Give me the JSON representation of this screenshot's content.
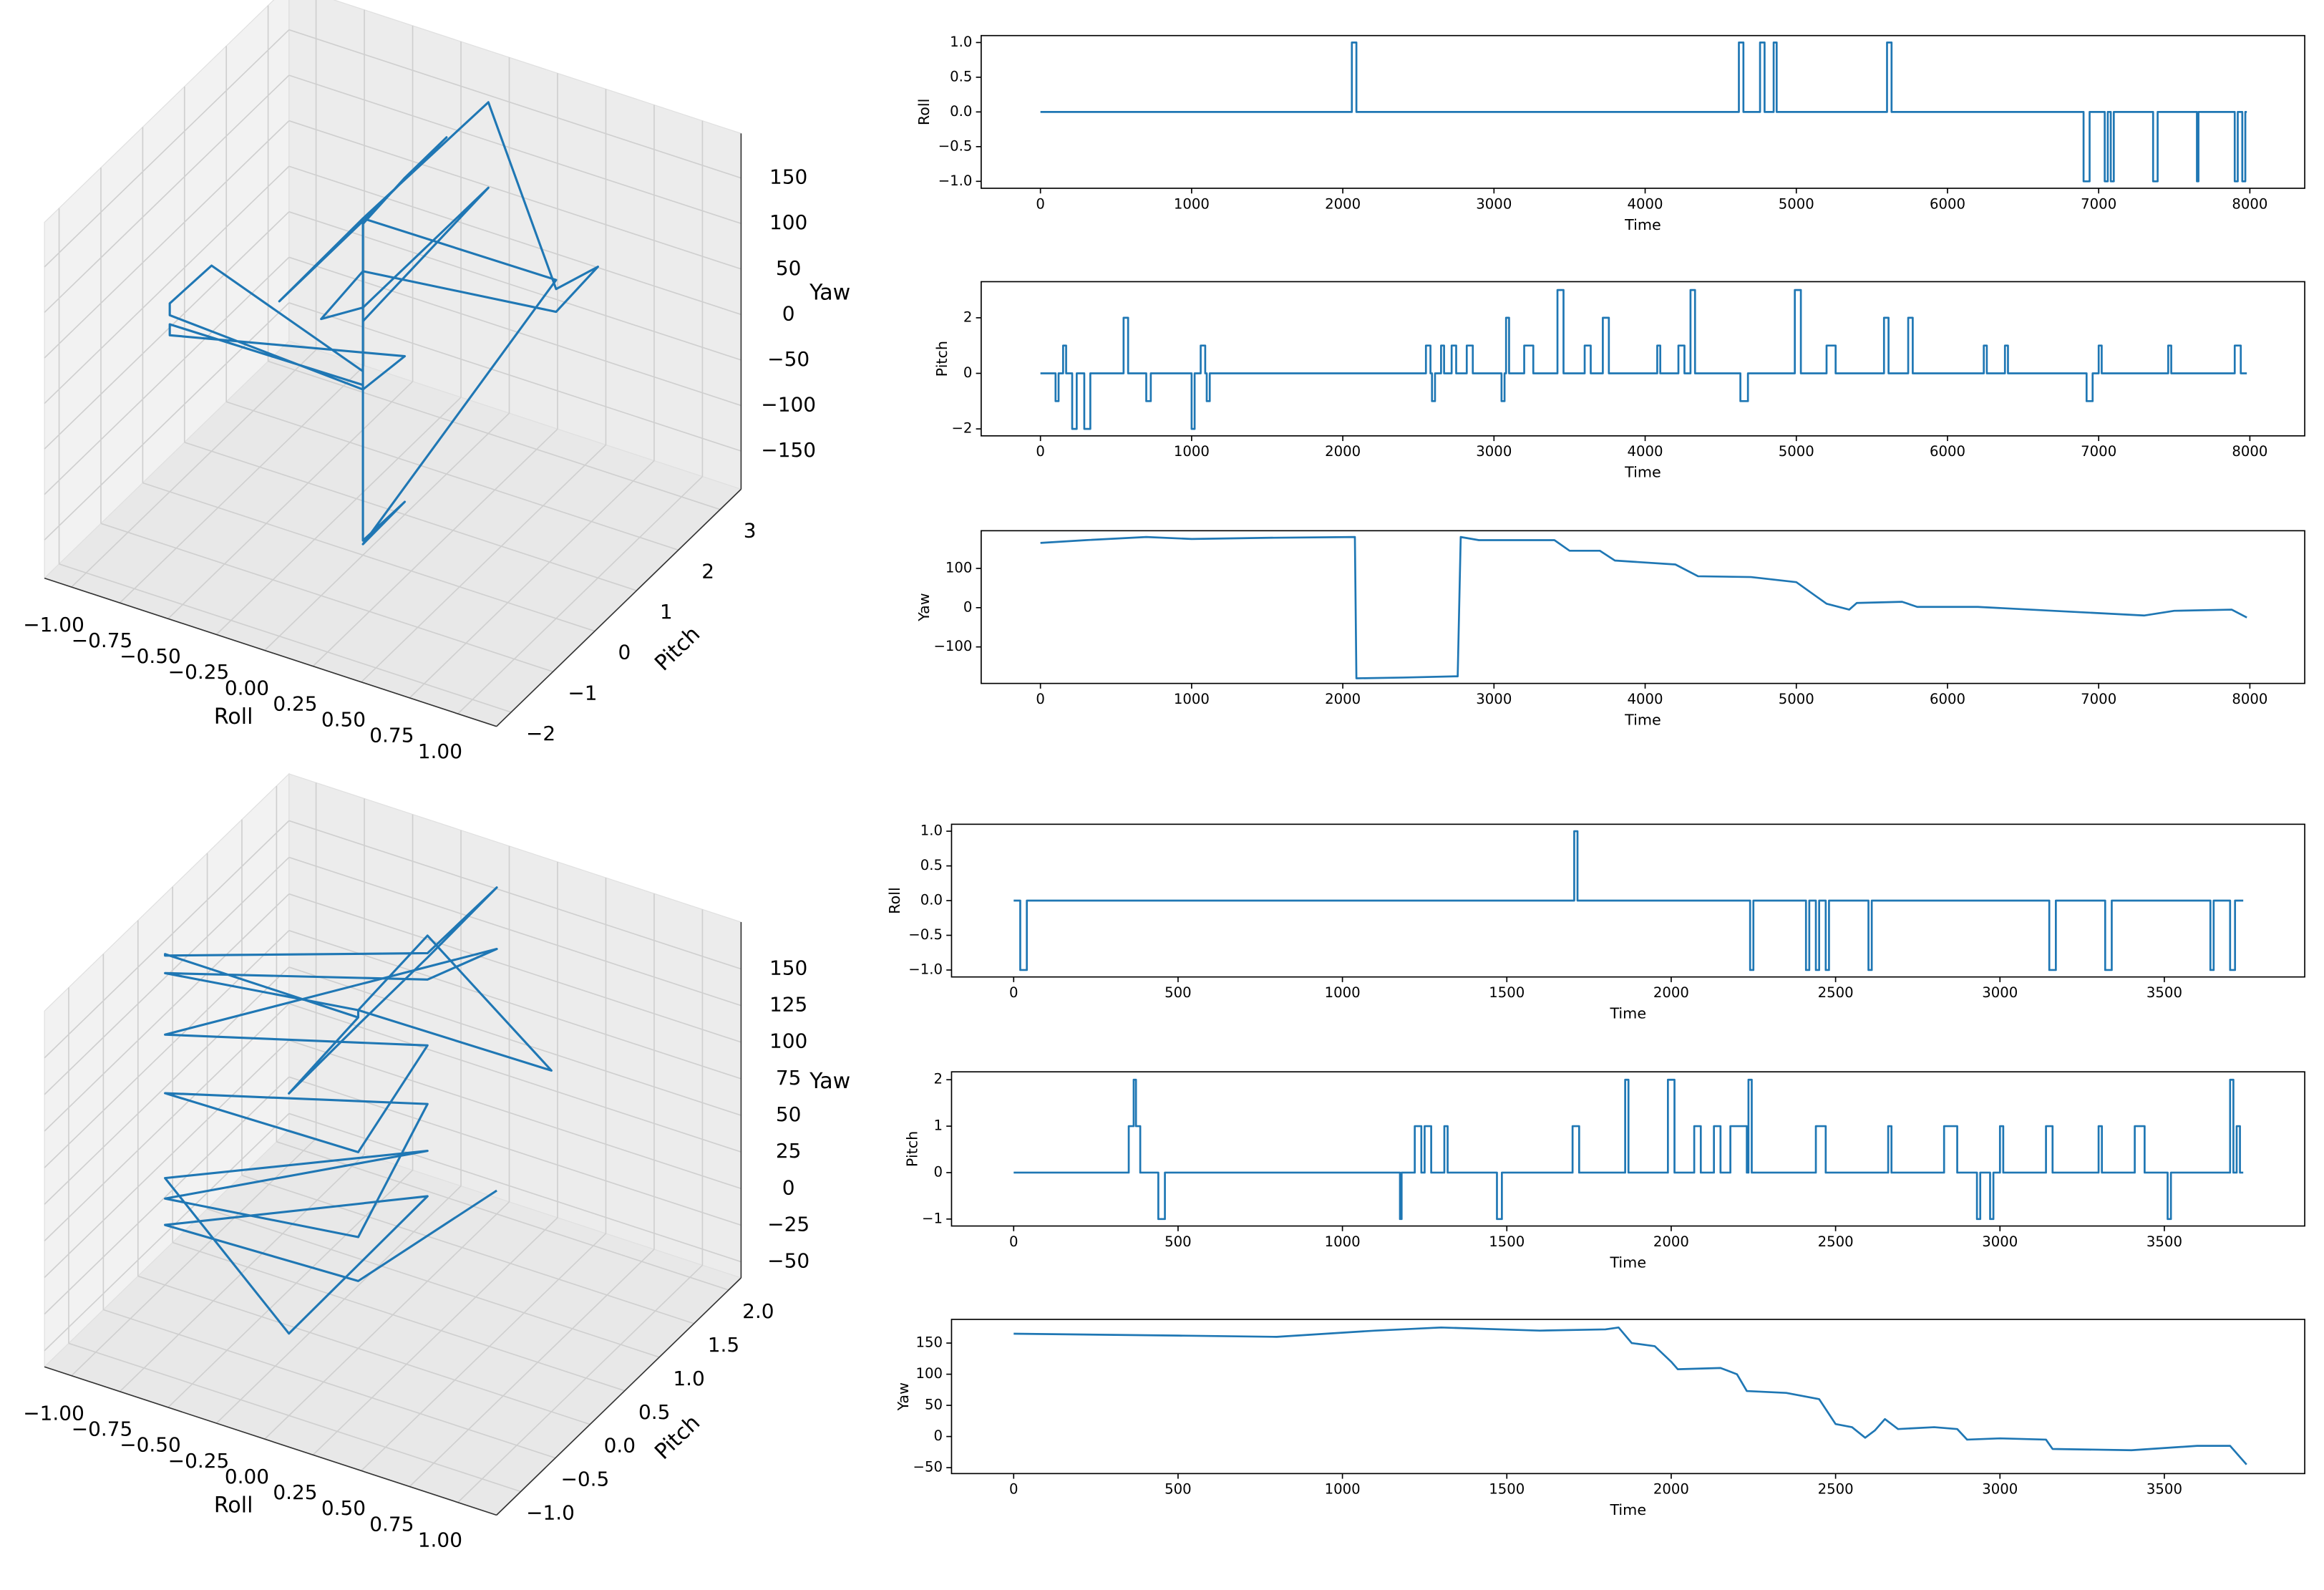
{
  "chart_data": [
    {
      "type": "line3d",
      "color": "#1f77b4",
      "grid": true,
      "xlabel": "Roll",
      "ylabel": "Pitch",
      "zlabel": "Yaw",
      "xlim": [
        -1.14,
        1.2
      ],
      "ylim": [
        -2.35,
        3.5
      ],
      "zlim": [
        -192,
        199
      ],
      "xticks": [
        {
          "value": -1,
          "label": "−1.00"
        },
        {
          "value": -0.75,
          "label": "−0.75"
        },
        {
          "value": -0.5,
          "label": "−0.50"
        },
        {
          "value": -0.25,
          "label": "−0.25"
        },
        {
          "value": 0,
          "label": "0.00"
        },
        {
          "value": 0.25,
          "label": "0.25"
        },
        {
          "value": 0.5,
          "label": "0.50"
        },
        {
          "value": 0.75,
          "label": "0.75"
        },
        {
          "value": 1,
          "label": "1.00"
        }
      ],
      "yticks": [
        {
          "value": -2,
          "label": "−2"
        },
        {
          "value": -1,
          "label": "−1"
        },
        0,
        1,
        2,
        3
      ],
      "zticks": [
        {
          "value": -150,
          "label": "−150"
        },
        {
          "value": -100,
          "label": "−100"
        },
        {
          "value": -50,
          "label": "−50"
        },
        0,
        50,
        100,
        150
      ],
      "x": [
        0,
        0,
        0,
        0,
        0,
        0,
        0,
        1,
        1,
        0,
        0,
        0,
        0,
        0,
        1,
        1,
        1,
        0,
        0,
        0,
        0,
        0,
        0,
        -1,
        -1,
        -1,
        0,
        0,
        -1,
        -1,
        0,
        0
      ],
      "y": [
        0,
        0,
        1,
        2,
        0,
        -2,
        0,
        0,
        0,
        0,
        1,
        0,
        0,
        3,
        0,
        1,
        0,
        0,
        -1,
        0,
        3,
        0,
        0,
        1,
        0,
        0,
        0,
        1,
        0,
        0,
        0,
        0
      ],
      "z": [
        165,
        172,
        178,
        178,
        175,
        176,
        178,
        180,
        180,
        -180,
        -178,
        -176,
        178,
        172,
        170,
        150,
        145,
        120,
        112,
        80,
        78,
        65,
        10,
        12,
        15,
        2,
        -10,
        -18,
        -20,
        -8,
        -5,
        -25
      ]
    },
    {
      "type": "line",
      "color": "#1f77b4",
      "xlabel": "Time",
      "ylabel": "Roll",
      "xlim": [
        -392,
        8363
      ],
      "ylim": [
        -1.1,
        1.1
      ],
      "xticks": [
        0,
        1000,
        2000,
        3000,
        4000,
        5000,
        6000,
        7000,
        8000
      ],
      "yticks": [
        {
          "value": -1,
          "label": "−1.0"
        },
        {
          "value": -0.5,
          "label": "−0.5"
        },
        {
          "value": 0,
          "label": "0.0"
        },
        0.5,
        {
          "value": 1,
          "label": "1.0"
        }
      ],
      "x": [
        0,
        2060,
        2060,
        2090,
        2090,
        4620,
        4620,
        4650,
        4650,
        4760,
        4760,
        4790,
        4790,
        4850,
        4850,
        4870,
        4870,
        5600,
        5600,
        5630,
        5630,
        6900,
        6900,
        6940,
        6940,
        7040,
        7040,
        7060,
        7060,
        7080,
        7080,
        7100,
        7100,
        7360,
        7360,
        7390,
        7390,
        7650,
        7650,
        7660,
        7660,
        7900,
        7900,
        7920,
        7920,
        7950,
        7950,
        7970,
        7970,
        7980
      ],
      "values": [
        0,
        0,
        1,
        1,
        0,
        0,
        1,
        1,
        0,
        0,
        1,
        1,
        0,
        0,
        1,
        1,
        0,
        0,
        1,
        1,
        0,
        0,
        -1,
        -1,
        0,
        0,
        -1,
        -1,
        0,
        0,
        -1,
        -1,
        0,
        0,
        -1,
        -1,
        0,
        0,
        -1,
        -1,
        0,
        0,
        -1,
        -1,
        0,
        0,
        -1,
        -1,
        0,
        0
      ]
    },
    {
      "type": "line",
      "color": "#1f77b4",
      "xlabel": "Time",
      "ylabel": "Pitch",
      "xlim": [
        -392,
        8363
      ],
      "ylim": [
        -2.25,
        3.3
      ],
      "xticks": [
        0,
        1000,
        2000,
        3000,
        4000,
        5000,
        6000,
        7000,
        8000
      ],
      "yticks": [
        {
          "value": -2,
          "label": "−2"
        },
        0,
        2
      ],
      "x": [
        0,
        100,
        100,
        120,
        120,
        150,
        150,
        170,
        170,
        210,
        210,
        240,
        240,
        290,
        290,
        330,
        330,
        550,
        550,
        580,
        580,
        700,
        700,
        730,
        730,
        1000,
        1000,
        1020,
        1020,
        1060,
        1060,
        1090,
        1090,
        1100,
        1100,
        1120,
        1120,
        2550,
        2550,
        2580,
        2580,
        2590,
        2590,
        2610,
        2610,
        2650,
        2650,
        2670,
        2670,
        2720,
        2720,
        2750,
        2750,
        2820,
        2820,
        2860,
        2860,
        3050,
        3050,
        3070,
        3070,
        3080,
        3080,
        3100,
        3100,
        3200,
        3200,
        3260,
        3260,
        3420,
        3420,
        3460,
        3460,
        3600,
        3600,
        3640,
        3640,
        3720,
        3720,
        3760,
        3760,
        4080,
        4080,
        4100,
        4100,
        4220,
        4220,
        4260,
        4260,
        4300,
        4300,
        4330,
        4330,
        4630,
        4630,
        4680,
        4680,
        4990,
        4990,
        5030,
        5030,
        5200,
        5200,
        5260,
        5260,
        5580,
        5580,
        5610,
        5610,
        5740,
        5740,
        5770,
        5770,
        6240,
        6240,
        6260,
        6260,
        6380,
        6380,
        6400,
        6400,
        6920,
        6920,
        6960,
        6960,
        7000,
        7000,
        7020,
        7020,
        7460,
        7460,
        7480,
        7480,
        7900,
        7900,
        7940,
        7940,
        7980
      ],
      "values": [
        0,
        0,
        -1,
        -1,
        0,
        0,
        1,
        1,
        0,
        0,
        -2,
        -2,
        0,
        0,
        -2,
        -2,
        0,
        0,
        2,
        2,
        0,
        0,
        -1,
        -1,
        0,
        0,
        -2,
        -2,
        0,
        0,
        1,
        1,
        0,
        0,
        -1,
        -1,
        0,
        0,
        1,
        1,
        0,
        0,
        -1,
        -1,
        0,
        0,
        1,
        1,
        0,
        0,
        1,
        1,
        0,
        0,
        1,
        1,
        0,
        0,
        -1,
        -1,
        0,
        0,
        2,
        2,
        0,
        0,
        1,
        1,
        0,
        0,
        3,
        3,
        0,
        0,
        1,
        1,
        0,
        0,
        2,
        2,
        0,
        0,
        1,
        1,
        0,
        0,
        1,
        1,
        0,
        0,
        3,
        3,
        0,
        0,
        -1,
        -1,
        0,
        0,
        3,
        3,
        0,
        0,
        1,
        1,
        0,
        0,
        2,
        2,
        0,
        0,
        2,
        2,
        0,
        0,
        1,
        1,
        0,
        0,
        1,
        1,
        0,
        0,
        -1,
        -1,
        0,
        0,
        1,
        1,
        0,
        0,
        1,
        1,
        0,
        0,
        1,
        1,
        0,
        0
      ]
    },
    {
      "type": "line",
      "color": "#1f77b4",
      "xlabel": "Time",
      "ylabel": "Yaw",
      "xlim": [
        -392,
        8363
      ],
      "ylim": [
        -193,
        196
      ],
      "xticks": [
        0,
        1000,
        2000,
        3000,
        4000,
        5000,
        6000,
        7000,
        8000
      ],
      "yticks": [
        {
          "value": -100,
          "label": "−100"
        },
        0,
        100
      ],
      "x": [
        0,
        300,
        700,
        1000,
        1500,
        2080,
        2090,
        2400,
        2740,
        2760,
        2780,
        2900,
        3400,
        3500,
        3700,
        3800,
        4200,
        4350,
        4700,
        5000,
        5200,
        5350,
        5400,
        5700,
        5800,
        6200,
        6800,
        7300,
        7500,
        7880,
        7980
      ],
      "values": [
        165,
        172,
        180,
        175,
        178,
        180,
        -180,
        -178,
        -175,
        -175,
        180,
        172,
        172,
        145,
        145,
        120,
        110,
        80,
        78,
        65,
        10,
        -5,
        12,
        15,
        2,
        2,
        -10,
        -20,
        -8,
        -5,
        -25
      ]
    },
    {
      "type": "line3d",
      "color": "#1f77b4",
      "grid": true,
      "xlabel": "Roll",
      "ylabel": "Pitch",
      "zlabel": "Yaw",
      "xlim": [
        -1.14,
        1.2
      ],
      "ylim": [
        -1.35,
        2.18
      ],
      "zlim": [
        -61,
        182
      ],
      "xticks": [
        {
          "value": -1,
          "label": "−1.00"
        },
        {
          "value": -0.75,
          "label": "−0.75"
        },
        {
          "value": -0.5,
          "label": "−0.50"
        },
        {
          "value": -0.25,
          "label": "−0.25"
        },
        {
          "value": 0,
          "label": "0.00"
        },
        {
          "value": 0.25,
          "label": "0.25"
        },
        {
          "value": 0.5,
          "label": "0.50"
        },
        {
          "value": 0.75,
          "label": "0.75"
        },
        {
          "value": 1,
          "label": "1.00"
        }
      ],
      "yticks": [
        {
          "value": -1,
          "label": "−1.0"
        },
        {
          "value": -0.5,
          "label": "−0.5"
        },
        {
          "value": 0,
          "label": "0.0"
        },
        0.5,
        {
          "value": 1,
          "label": "1.0"
        },
        1.5,
        {
          "value": 2,
          "label": "2.0"
        }
      ],
      "zticks": [
        {
          "value": -50,
          "label": "−50"
        },
        {
          "value": -25,
          "label": "−25"
        },
        0,
        25,
        50,
        75,
        100,
        125,
        150
      ],
      "x": [
        0,
        -1,
        -1,
        0,
        0,
        0,
        0,
        0,
        0,
        0,
        1,
        0,
        0,
        -1,
        0,
        0,
        -1,
        0,
        0,
        -1,
        0,
        0,
        -1,
        0,
        -1,
        0,
        0,
        -1,
        0,
        0
      ],
      "y": [
        0,
        0,
        0,
        1,
        2,
        1,
        0,
        -1,
        0,
        0,
        0,
        1,
        0,
        0,
        1,
        2,
        0,
        1,
        0,
        0,
        1,
        0,
        0,
        1,
        0,
        -1,
        1,
        0,
        0,
        2
      ],
      "z": [
        165,
        165,
        164,
        163,
        162,
        160,
        160,
        159,
        165,
        170,
        172,
        175,
        170,
        152,
        145,
        120,
        110,
        100,
        73,
        70,
        60,
        15,
        -2,
        28,
        12,
        -5,
        -3,
        -20,
        -15,
        -45
      ]
    },
    {
      "type": "line",
      "color": "#1f77b4",
      "xlabel": "Time",
      "ylabel": "Roll",
      "xlim": [
        -189,
        3927
      ],
      "ylim": [
        -1.1,
        1.1
      ],
      "xticks": [
        0,
        500,
        1000,
        1500,
        2000,
        2500,
        3000,
        3500
      ],
      "yticks": [
        {
          "value": -1,
          "label": "−1.0"
        },
        {
          "value": -0.5,
          "label": "−0.5"
        },
        {
          "value": 0,
          "label": "0.0"
        },
        0.5,
        {
          "value": 1,
          "label": "1.0"
        }
      ],
      "x": [
        0,
        20,
        20,
        40,
        40,
        1705,
        1705,
        1715,
        1715,
        2240,
        2240,
        2250,
        2250,
        2410,
        2410,
        2420,
        2420,
        2440,
        2440,
        2450,
        2450,
        2470,
        2470,
        2480,
        2480,
        2600,
        2600,
        2610,
        2610,
        3150,
        3150,
        3170,
        3170,
        3320,
        3320,
        3340,
        3340,
        3640,
        3640,
        3650,
        3650,
        3700,
        3700,
        3715,
        3715,
        3740
      ],
      "values": [
        0,
        0,
        -1,
        -1,
        0,
        0,
        1,
        1,
        0,
        0,
        -1,
        -1,
        0,
        0,
        -1,
        -1,
        0,
        0,
        -1,
        -1,
        0,
        0,
        -1,
        -1,
        0,
        0,
        -1,
        -1,
        0,
        0,
        -1,
        -1,
        0,
        0,
        -1,
        -1,
        0,
        0,
        -1,
        -1,
        0,
        0,
        -1,
        -1,
        0,
        0
      ]
    },
    {
      "type": "line",
      "color": "#1f77b4",
      "xlabel": "Time",
      "ylabel": "Pitch",
      "xlim": [
        -189,
        3927
      ],
      "ylim": [
        -1.15,
        2.17
      ],
      "xticks": [
        0,
        500,
        1000,
        1500,
        2000,
        2500,
        3000,
        3500
      ],
      "yticks": [
        {
          "value": -1,
          "label": "−1"
        },
        0,
        1,
        2
      ],
      "x": [
        0,
        350,
        350,
        365,
        365,
        372,
        372,
        385,
        385,
        440,
        440,
        460,
        460,
        1175,
        1175,
        1180,
        1180,
        1220,
        1220,
        1240,
        1240,
        1250,
        1250,
        1270,
        1270,
        1310,
        1310,
        1320,
        1320,
        1470,
        1470,
        1485,
        1485,
        1700,
        1700,
        1720,
        1720,
        1860,
        1860,
        1870,
        1870,
        1990,
        1990,
        2010,
        2010,
        2070,
        2070,
        2090,
        2090,
        2130,
        2130,
        2150,
        2150,
        2180,
        2180,
        2230,
        2230,
        2235,
        2235,
        2245,
        2245,
        2440,
        2440,
        2470,
        2470,
        2660,
        2660,
        2670,
        2670,
        2830,
        2830,
        2870,
        2870,
        2930,
        2930,
        2940,
        2940,
        2970,
        2970,
        2980,
        2980,
        3000,
        3000,
        3010,
        3010,
        3140,
        3140,
        3160,
        3160,
        3300,
        3300,
        3310,
        3310,
        3410,
        3410,
        3440,
        3440,
        3510,
        3510,
        3520,
        3520,
        3700,
        3700,
        3710,
        3710,
        3720,
        3720,
        3730,
        3730,
        3740
      ],
      "values": [
        0,
        0,
        1,
        1,
        2,
        2,
        1,
        1,
        0,
        0,
        -1,
        -1,
        0,
        0,
        -1,
        -1,
        0,
        0,
        1,
        1,
        0,
        0,
        1,
        1,
        0,
        0,
        1,
        1,
        0,
        0,
        -1,
        -1,
        0,
        0,
        1,
        1,
        0,
        0,
        2,
        2,
        0,
        0,
        2,
        2,
        0,
        0,
        1,
        1,
        0,
        0,
        1,
        1,
        0,
        0,
        1,
        1,
        0,
        0,
        2,
        2,
        0,
        0,
        1,
        1,
        0,
        0,
        1,
        1,
        0,
        0,
        1,
        1,
        0,
        0,
        -1,
        -1,
        0,
        0,
        -1,
        -1,
        0,
        0,
        1,
        1,
        0,
        0,
        1,
        1,
        0,
        0,
        1,
        1,
        0,
        0,
        1,
        1,
        0,
        0,
        -1,
        -1,
        0,
        0,
        2,
        2,
        0,
        0,
        1,
        1,
        0,
        0
      ]
    },
    {
      "type": "line",
      "color": "#1f77b4",
      "xlabel": "Time",
      "ylabel": "Yaw",
      "xlim": [
        -189,
        3927
      ],
      "ylim": [
        -59.5,
        188
      ],
      "xticks": [
        0,
        500,
        1000,
        1500,
        2000,
        2500,
        3000,
        3500
      ],
      "yticks": [
        {
          "value": -50,
          "label": "−50"
        },
        0,
        50,
        100,
        150
      ],
      "x": [
        0,
        500,
        800,
        1100,
        1300,
        1600,
        1800,
        1840,
        1880,
        1950,
        2000,
        2020,
        2150,
        2200,
        2230,
        2350,
        2450,
        2500,
        2550,
        2590,
        2620,
        2650,
        2690,
        2800,
        2870,
        2900,
        3000,
        3140,
        3160,
        3400,
        3600,
        3700,
        3750
      ],
      "values": [
        165,
        162,
        160,
        170,
        175,
        170,
        172,
        175,
        150,
        145,
        120,
        108,
        110,
        100,
        73,
        70,
        60,
        20,
        15,
        -2,
        10,
        28,
        12,
        15,
        12,
        -5,
        -3,
        -5,
        -20,
        -22,
        -15,
        -15,
        -45
      ]
    }
  ]
}
